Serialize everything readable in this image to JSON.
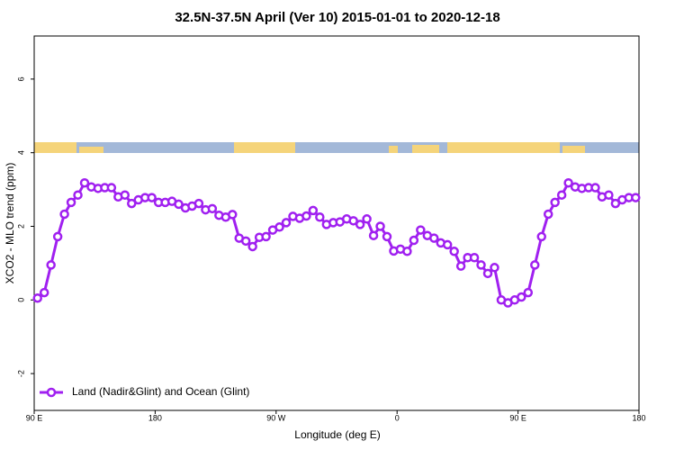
{
  "chart_data": {
    "type": "line",
    "title": "32.5N-37.5N April (Ver 10)   2015-01-01 to 2020-12-18",
    "xlabel": "Longitude (deg E)",
    "ylabel": "XCO2 - MLO trend (ppm)",
    "x": [
      92.5,
      97.5,
      102.5,
      107.5,
      112.5,
      117.5,
      122.5,
      127.5,
      132.5,
      137.5,
      142.5,
      147.5,
      152.5,
      157.5,
      162.5,
      167.5,
      172.5,
      177.5,
      182.5,
      187.5,
      192.5,
      197.5,
      202.5,
      207.5,
      212.5,
      217.5,
      222.5,
      227.5,
      232.5,
      237.5,
      242.5,
      247.5,
      252.5,
      257.5,
      262.5,
      267.5,
      272.5,
      277.5,
      282.5,
      287.5,
      292.5,
      297.5,
      302.5,
      307.5,
      312.5,
      317.5,
      322.5,
      327.5,
      332.5,
      337.5,
      342.5,
      347.5,
      352.5,
      357.5,
      362.5,
      367.5,
      372.5,
      377.5,
      382.5,
      387.5,
      392.5,
      397.5,
      402.5,
      407.5,
      412.5,
      417.5,
      422.5,
      427.5,
      432.5,
      437.5,
      442.5,
      447.5,
      452.5,
      457.5,
      462.5,
      467.5,
      472.5,
      477.5,
      482.5,
      487.5,
      492.5,
      497.5,
      502.5,
      507.5,
      512.5,
      517.5,
      522.5,
      527.5,
      532.5,
      537.5
    ],
    "series": [
      {
        "name": "Land (Nadir&Glint) and Ocean (Glint)",
        "color": "#a020f0",
        "values": [
          0.05,
          0.2,
          0.95,
          1.72,
          2.33,
          2.65,
          2.85,
          3.18,
          3.07,
          3.03,
          3.05,
          3.05,
          2.8,
          2.85,
          2.62,
          2.72,
          2.78,
          2.78,
          2.65,
          2.65,
          2.68,
          2.6,
          2.5,
          2.55,
          2.62,
          2.45,
          2.48,
          2.3,
          2.25,
          2.32,
          1.68,
          1.6,
          1.45,
          1.7,
          1.72,
          1.9,
          1.98,
          2.1,
          2.27,
          2.22,
          2.28,
          2.43,
          2.25,
          2.05,
          2.1,
          2.12,
          2.2,
          2.15,
          2.05,
          2.2,
          1.75,
          2.0,
          1.72,
          1.33,
          1.38,
          1.32,
          1.62,
          1.9,
          1.75,
          1.68,
          1.55,
          1.5,
          1.32,
          0.92,
          1.15,
          1.15,
          0.95,
          0.72,
          0.88,
          0.0,
          -0.08,
          0.0,
          0.08,
          0.2,
          0.95,
          1.72,
          2.33,
          2.65,
          2.85,
          3.18,
          3.07,
          3.03,
          3.05,
          3.05,
          2.8,
          2.85,
          2.62,
          2.72,
          2.78,
          2.78
        ]
      }
    ],
    "xlim": [
      90,
      540
    ],
    "xticks": [
      {
        "value": 90,
        "label": "90 E"
      },
      180,
      {
        "value": 270,
        "label": "90 W"
      },
      {
        "value": 360,
        "label": "0"
      },
      {
        "value": 450,
        "label": "90 E"
      },
      {
        "value": 540,
        "label": "180"
      }
    ],
    "ylim": [
      -3,
      7.17
    ],
    "yticks": [
      -2,
      0,
      2,
      4,
      6
    ],
    "legend": "bottom-left"
  }
}
